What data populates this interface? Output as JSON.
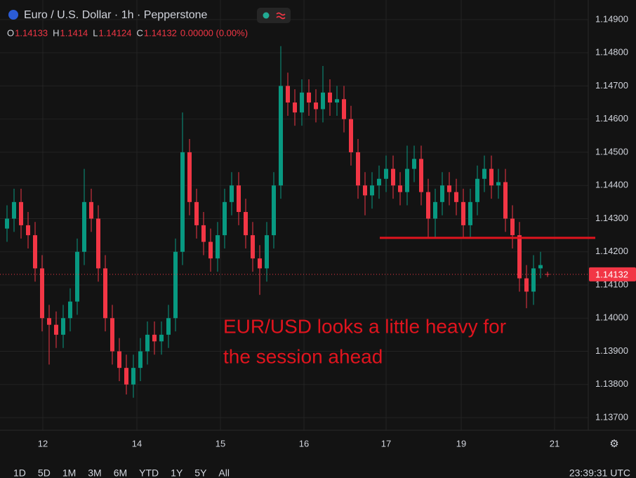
{
  "chart_data": {
    "type": "candlestick",
    "title": "Euro / U.S. Dollar · 1h · Pepperstone",
    "ohlc_legend": {
      "open_label": "O",
      "open": 1.14133,
      "high_label": "H",
      "high": 1.1414,
      "low_label": "L",
      "low": 1.14124,
      "close_label": "C",
      "close": 1.14132,
      "change": "0.00000 (0.00%)"
    },
    "x": [
      1,
      2,
      3,
      4,
      5,
      6,
      7,
      8,
      9,
      10,
      11,
      12,
      13,
      14,
      15,
      16,
      17,
      18,
      19,
      20,
      21,
      22,
      23,
      24,
      25,
      26,
      27,
      28,
      29,
      30,
      31,
      32,
      33,
      34,
      35,
      36,
      37,
      38,
      39,
      40,
      41,
      42,
      43,
      44,
      45,
      46,
      47,
      48,
      49,
      50,
      51,
      52,
      53,
      54,
      55,
      56,
      57,
      58,
      59,
      60,
      61,
      62,
      63,
      64,
      65,
      66,
      67,
      68,
      69,
      70,
      71,
      72,
      73,
      74,
      75,
      76,
      77,
      78
    ],
    "open": [
      1.1427,
      1.143,
      1.1435,
      1.1428,
      1.1425,
      1.1415,
      1.14,
      1.1398,
      1.1395,
      1.14,
      1.1405,
      1.142,
      1.1435,
      1.143,
      1.1415,
      1.14,
      1.139,
      1.1385,
      1.138,
      1.1385,
      1.139,
      1.1395,
      1.1393,
      1.1395,
      1.14,
      1.142,
      1.145,
      1.1435,
      1.1428,
      1.1423,
      1.1418,
      1.1425,
      1.1435,
      1.144,
      1.1432,
      1.1425,
      1.1418,
      1.1415,
      1.1425,
      1.144,
      1.147,
      1.1465,
      1.1462,
      1.1468,
      1.1465,
      1.1463,
      1.1468,
      1.1465,
      1.1466,
      1.146,
      1.145,
      1.144,
      1.1437,
      1.144,
      1.1442,
      1.1445,
      1.144,
      1.1438,
      1.1445,
      1.1448,
      1.1438,
      1.143,
      1.1435,
      1.144,
      1.1438,
      1.1435,
      1.1428,
      1.1435,
      1.1442,
      1.1445,
      1.144,
      1.1441,
      1.143,
      1.1425,
      1.1412,
      1.1408,
      1.1415,
      1.14133
    ],
    "high": [
      1.1434,
      1.1439,
      1.1439,
      1.1432,
      1.1429,
      1.1419,
      1.1404,
      1.1402,
      1.1404,
      1.1409,
      1.1424,
      1.1445,
      1.1439,
      1.1434,
      1.1419,
      1.1404,
      1.1394,
      1.1389,
      1.1389,
      1.1394,
      1.1399,
      1.1399,
      1.1399,
      1.1404,
      1.1424,
      1.1462,
      1.1454,
      1.1439,
      1.1432,
      1.1427,
      1.1429,
      1.1439,
      1.1444,
      1.1444,
      1.1436,
      1.1429,
      1.1422,
      1.1429,
      1.1444,
      1.1482,
      1.1474,
      1.1469,
      1.1472,
      1.1472,
      1.1469,
      1.1476,
      1.1472,
      1.147,
      1.147,
      1.1464,
      1.1454,
      1.1444,
      1.1444,
      1.1446,
      1.1449,
      1.1449,
      1.1444,
      1.1452,
      1.1452,
      1.1452,
      1.1442,
      1.1439,
      1.1444,
      1.1444,
      1.1442,
      1.1439,
      1.1439,
      1.1446,
      1.1449,
      1.1449,
      1.1445,
      1.1445,
      1.1434,
      1.1429,
      1.1416,
      1.1419,
      1.142,
      1.1414
    ],
    "low": [
      1.1423,
      1.1426,
      1.1424,
      1.1421,
      1.1411,
      1.1396,
      1.1386,
      1.1391,
      1.1391,
      1.1396,
      1.1401,
      1.1416,
      1.1426,
      1.1411,
      1.1396,
      1.1386,
      1.1381,
      1.1377,
      1.1376,
      1.1381,
      1.1386,
      1.1389,
      1.1389,
      1.1391,
      1.1396,
      1.1416,
      1.1431,
      1.1424,
      1.1419,
      1.1414,
      1.1414,
      1.1421,
      1.1431,
      1.1428,
      1.1421,
      1.1414,
      1.1407,
      1.1411,
      1.1421,
      1.1436,
      1.1461,
      1.1458,
      1.1458,
      1.1461,
      1.1459,
      1.1459,
      1.1461,
      1.1461,
      1.1456,
      1.1446,
      1.1436,
      1.1431,
      1.1433,
      1.1436,
      1.1438,
      1.1436,
      1.1434,
      1.1434,
      1.1441,
      1.1434,
      1.1424,
      1.1424,
      1.1431,
      1.1434,
      1.1431,
      1.1424,
      1.1424,
      1.1431,
      1.1438,
      1.1436,
      1.1436,
      1.1426,
      1.1421,
      1.1408,
      1.1403,
      1.1404,
      1.1412,
      1.14124
    ],
    "close": [
      1.143,
      1.1435,
      1.1428,
      1.1425,
      1.1415,
      1.14,
      1.1398,
      1.1395,
      1.14,
      1.1405,
      1.142,
      1.1435,
      1.143,
      1.1415,
      1.14,
      1.139,
      1.1385,
      1.138,
      1.1385,
      1.139,
      1.1395,
      1.1393,
      1.1395,
      1.14,
      1.142,
      1.145,
      1.1435,
      1.1428,
      1.1423,
      1.1418,
      1.1425,
      1.1435,
      1.144,
      1.1432,
      1.1425,
      1.1418,
      1.1415,
      1.1425,
      1.144,
      1.147,
      1.1465,
      1.1462,
      1.1468,
      1.1465,
      1.1463,
      1.1468,
      1.1465,
      1.1466,
      1.146,
      1.145,
      1.144,
      1.1437,
      1.144,
      1.1442,
      1.1445,
      1.144,
      1.1438,
      1.1445,
      1.1448,
      1.1438,
      1.143,
      1.1435,
      1.144,
      1.1438,
      1.1435,
      1.1428,
      1.1435,
      1.1442,
      1.1445,
      1.144,
      1.1441,
      1.143,
      1.1425,
      1.1412,
      1.1408,
      1.1415,
      1.1416,
      1.14132
    ],
    "up_color": "#089981",
    "down_color": "#f23645",
    "xlim": [
      0,
      84
    ],
    "xticks": [
      {
        "value": 6.1,
        "label": "12"
      },
      {
        "value": 19.5,
        "label": "14"
      },
      {
        "value": 31.4,
        "label": "15"
      },
      {
        "value": 43.3,
        "label": "16"
      },
      {
        "value": 55,
        "label": "17"
      },
      {
        "value": 65.7,
        "label": "19"
      },
      {
        "value": 79,
        "label": "21"
      }
    ],
    "ylim": [
      1.13662,
      1.14959
    ],
    "yticks": [
      {
        "value": 1.149,
        "label": "1.14900"
      },
      {
        "value": 1.148,
        "label": "1.14800"
      },
      {
        "value": 1.147,
        "label": "1.14700"
      },
      {
        "value": 1.146,
        "label": "1.14600"
      },
      {
        "value": 1.145,
        "label": "1.14500"
      },
      {
        "value": 1.144,
        "label": "1.14400"
      },
      {
        "value": 1.143,
        "label": "1.14300"
      },
      {
        "value": 1.142,
        "label": "1.14200"
      },
      {
        "value": 1.141,
        "label": "1.14100"
      },
      {
        "value": 1.14,
        "label": "1.14000"
      },
      {
        "value": 1.139,
        "label": "1.13900"
      },
      {
        "value": 1.138,
        "label": "1.13800"
      },
      {
        "value": 1.137,
        "label": "1.13700"
      }
    ],
    "grid": true,
    "last_price": {
      "value": 1.14132,
      "label": "1.14132"
    },
    "level_line": {
      "value": 1.14242,
      "x_start": 54.1,
      "color": "#e0141e"
    },
    "annotation": {
      "lines": [
        "EUR/USD looks a little heavy for",
        "the session ahead"
      ],
      "color": "#e0141e"
    },
    "ranges": [
      "1D",
      "5D",
      "1M",
      "3M",
      "6M",
      "YTD",
      "1Y",
      "5Y",
      "All"
    ],
    "clock": "23:39:31 UTC"
  }
}
